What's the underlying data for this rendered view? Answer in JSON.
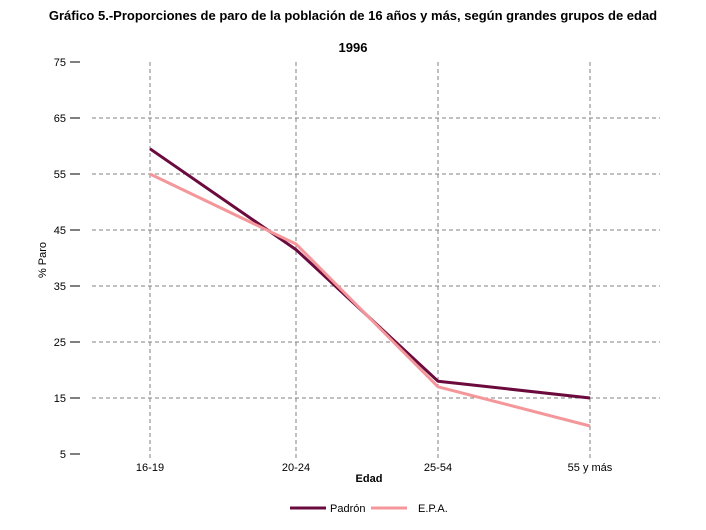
{
  "title": "Gráfico 5.-Proporciones de paro de la población de 16 años y más, según grandes grupos de edad",
  "subtitle": "1996",
  "chart_data": {
    "type": "line",
    "categories": [
      "16-19",
      "20-24",
      "25-54",
      "55 y más"
    ],
    "xlabel": "Edad",
    "ylabel": "% Paro",
    "ylim": [
      5,
      75
    ],
    "yticks": [
      5,
      15,
      25,
      35,
      45,
      55,
      65,
      75
    ],
    "grid": true,
    "legend_position": "bottom",
    "series": [
      {
        "name": "Padrón",
        "color": "#6b0a3c",
        "values": [
          59.5,
          41.5,
          18,
          15
        ]
      },
      {
        "name": "E.P.A.",
        "color": "#f4979b",
        "values": [
          55,
          42.5,
          17,
          10
        ]
      }
    ]
  }
}
